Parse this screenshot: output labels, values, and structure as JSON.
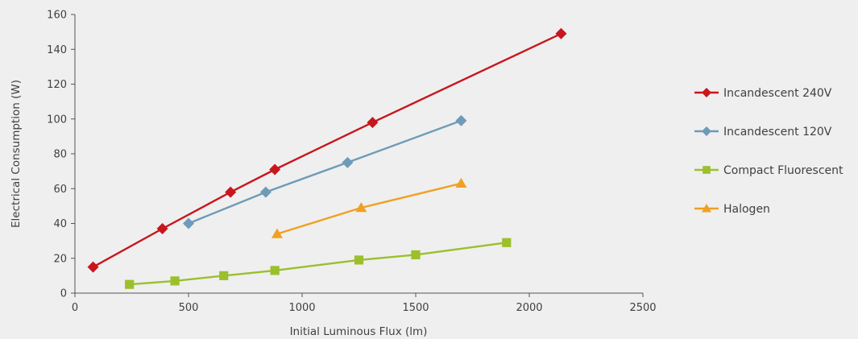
{
  "chart_data": {
    "type": "line",
    "xlabel": "Initial Luminous Flux (lm)",
    "ylabel": "Electrical Consumption (W)",
    "xlim": [
      0,
      2500
    ],
    "ylim": [
      0,
      160
    ],
    "xticks": [
      0,
      500,
      1000,
      1500,
      2000,
      2500
    ],
    "yticks": [
      0,
      20,
      40,
      60,
      80,
      100,
      120,
      140,
      160
    ],
    "grid": false,
    "legend_position": "right",
    "series": [
      {
        "name": "Incandescent 240V",
        "color": "#c8161d",
        "marker": "diamond",
        "points": [
          [
            80,
            15
          ],
          [
            385,
            37
          ],
          [
            685,
            58
          ],
          [
            880,
            71
          ],
          [
            1310,
            98
          ],
          [
            2140,
            149
          ]
        ]
      },
      {
        "name": "Incandescent 120V",
        "color": "#6e9bb8",
        "marker": "diamond",
        "points": [
          [
            500,
            40
          ],
          [
            840,
            58
          ],
          [
            1200,
            75
          ],
          [
            1700,
            99
          ]
        ]
      },
      {
        "name": "Compact Fluorescent",
        "color": "#9cbf2c",
        "marker": "square",
        "points": [
          [
            240,
            5
          ],
          [
            440,
            7
          ],
          [
            655,
            10
          ],
          [
            880,
            13
          ],
          [
            1250,
            19
          ],
          [
            1500,
            22
          ],
          [
            1900,
            29
          ]
        ]
      },
      {
        "name": "Halogen",
        "color": "#f0a021",
        "marker": "triangle",
        "points": [
          [
            890,
            34
          ],
          [
            1260,
            49
          ],
          [
            1700,
            63
          ]
        ]
      }
    ]
  }
}
